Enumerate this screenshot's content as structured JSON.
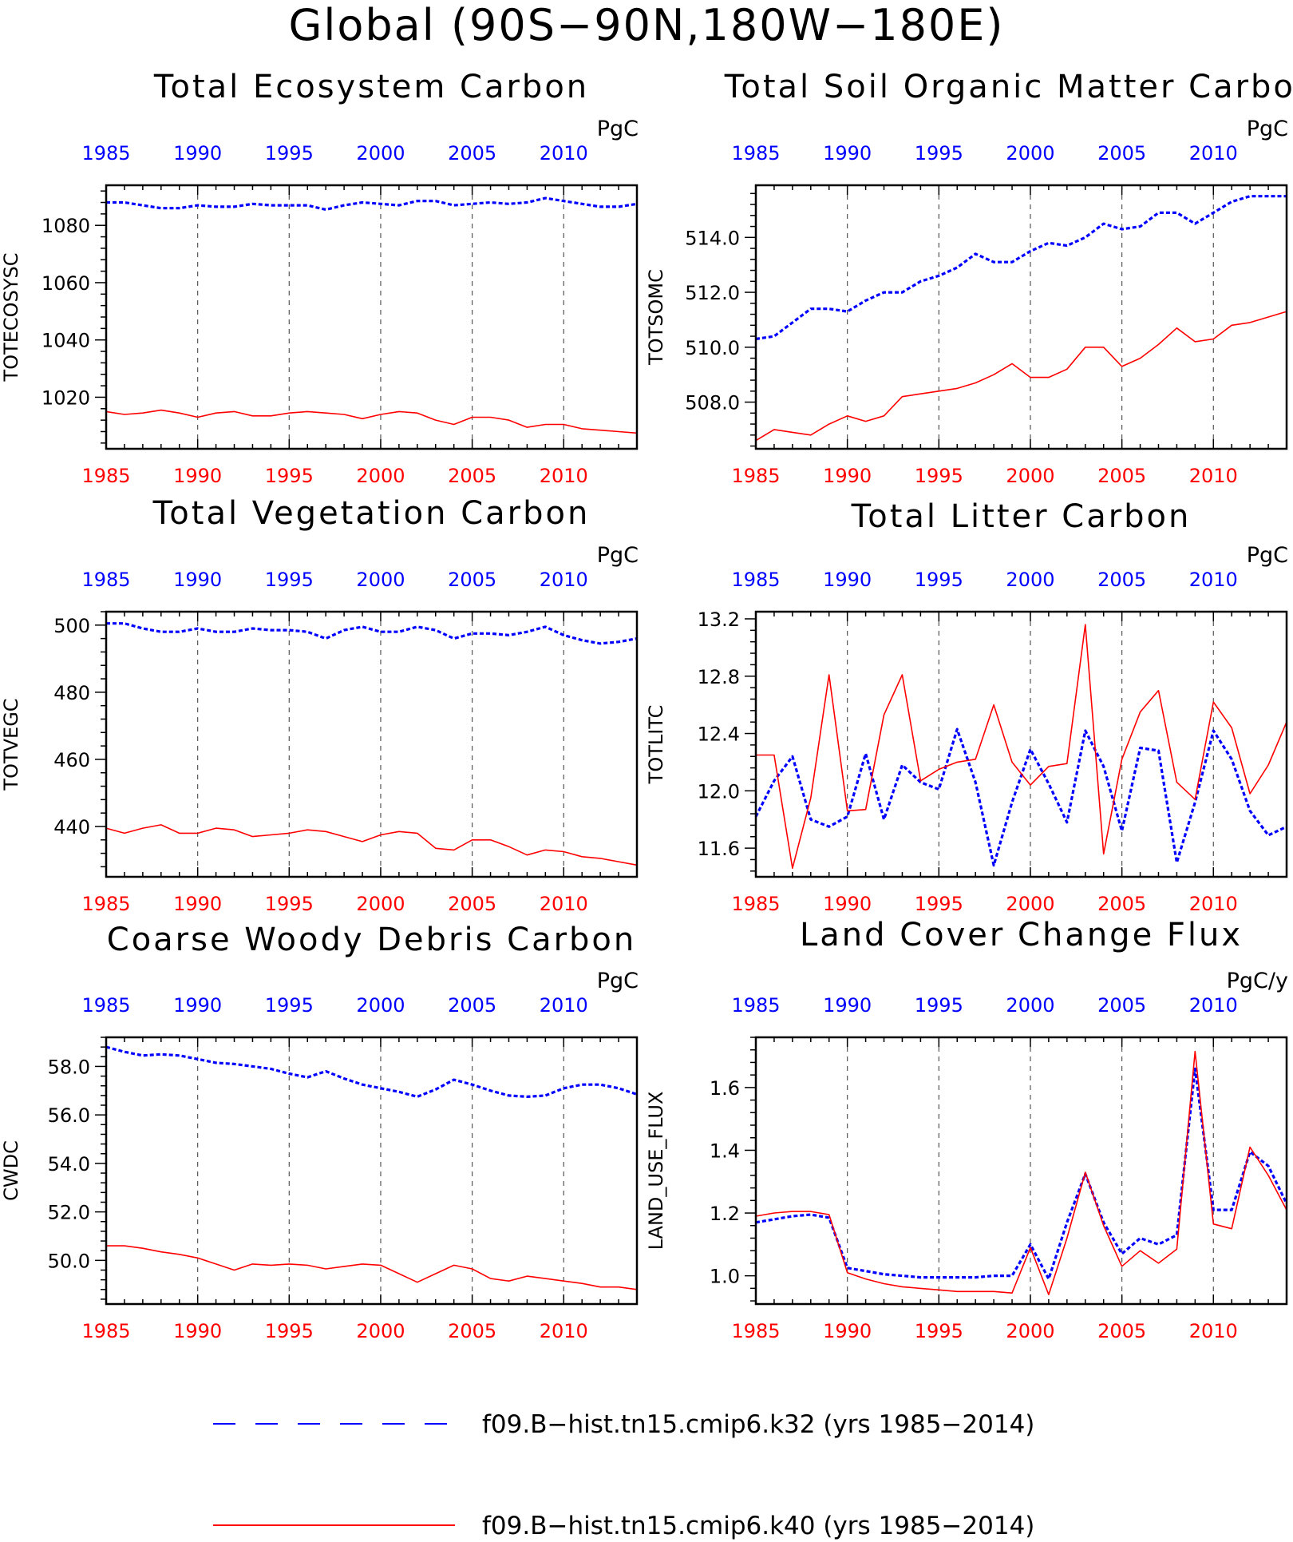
{
  "page_title": "Global (90S−90N,180W−180E)",
  "colors": {
    "series_a": "#0000ff",
    "series_b": "#ff0000",
    "axis": "#000000"
  },
  "legend": [
    {
      "label": "f09.B−hist.tn15.cmip6.k32 (yrs 1985−2014)",
      "color": "#0000ff",
      "style": "dashed"
    },
    {
      "label": "f09.B−hist.tn15.cmip6.k40 (yrs 1985−2014)",
      "color": "#ff0000",
      "style": "solid"
    }
  ],
  "chart_data": [
    {
      "type": "line",
      "title": "Total Ecosystem Carbon",
      "ylabel": "TOTECOSYSC",
      "units": "PgC",
      "xlim": [
        1985,
        2014
      ],
      "ylim": [
        1002,
        1094
      ],
      "yticks": [
        1020,
        1040,
        1060,
        1080
      ],
      "ytick_labels": [
        "1020",
        "1040",
        "1060",
        "1080"
      ],
      "xticks": [
        1985,
        1990,
        1995,
        2000,
        2005,
        2010
      ],
      "ygrid": [
        1990,
        1995,
        2000,
        2005,
        2010
      ],
      "x": [
        1985,
        1986,
        1987,
        1988,
        1989,
        1990,
        1991,
        1992,
        1993,
        1994,
        1995,
        1996,
        1997,
        1998,
        1999,
        2000,
        2001,
        2002,
        2003,
        2004,
        2005,
        2006,
        2007,
        2008,
        2009,
        2010,
        2011,
        2012,
        2013,
        2014
      ],
      "series": [
        {
          "name": "f09.B−hist.tn15.cmip6.k32",
          "style": "dashed",
          "values": [
            1088,
            1088,
            1087,
            1086,
            1086,
            1087,
            1086.5,
            1086.5,
            1087.5,
            1087,
            1087,
            1087,
            1085.5,
            1087,
            1088,
            1087.5,
            1087,
            1088.5,
            1088.5,
            1087,
            1087.5,
            1088,
            1087.5,
            1088,
            1089.5,
            1088.5,
            1087.5,
            1086.5,
            1086.5,
            1087.5
          ]
        },
        {
          "name": "f09.B−hist.tn15.cmip6.k40",
          "style": "solid",
          "values": [
            1015,
            1014,
            1014.5,
            1015.5,
            1014.5,
            1013,
            1014.5,
            1015,
            1013.5,
            1013.5,
            1014.5,
            1015,
            1014.5,
            1014,
            1012.5,
            1014,
            1015,
            1014.5,
            1012,
            1010.5,
            1013,
            1013,
            1012,
            1009.5,
            1010.5,
            1010.5,
            1009,
            1008.5,
            1008,
            1007.5
          ]
        }
      ]
    },
    {
      "type": "line",
      "title": "Total Soil Organic Matter Carbon",
      "ylabel": "TOTSOMC",
      "units": "PgC",
      "xlim": [
        1985,
        2014
      ],
      "ylim": [
        506.3,
        515.9
      ],
      "yticks": [
        508,
        510,
        512,
        514
      ],
      "ytick_labels": [
        "508.0",
        "510.0",
        "512.0",
        "514.0"
      ],
      "xticks": [
        1985,
        1990,
        1995,
        2000,
        2005,
        2010
      ],
      "ygrid": [
        1990,
        1995,
        2000,
        2005,
        2010
      ],
      "x": [
        1985,
        1986,
        1987,
        1988,
        1989,
        1990,
        1991,
        1992,
        1993,
        1994,
        1995,
        1996,
        1997,
        1998,
        1999,
        2000,
        2001,
        2002,
        2003,
        2004,
        2005,
        2006,
        2007,
        2008,
        2009,
        2010,
        2011,
        2012,
        2013,
        2014
      ],
      "series": [
        {
          "name": "f09.B−hist.tn15.cmip6.k32",
          "style": "dashed",
          "values": [
            510.3,
            510.4,
            510.9,
            511.4,
            511.4,
            511.3,
            511.7,
            512,
            512,
            512.4,
            512.6,
            512.9,
            513.4,
            513.1,
            513.1,
            513.5,
            513.8,
            513.7,
            514,
            514.5,
            514.3,
            514.4,
            514.9,
            514.9,
            514.5,
            514.9,
            515.3,
            515.5,
            515.5,
            515.5
          ]
        },
        {
          "name": "f09.B−hist.tn15.cmip6.k40",
          "style": "solid",
          "values": [
            506.6,
            507,
            506.9,
            506.8,
            507.2,
            507.5,
            507.3,
            507.5,
            508.2,
            508.3,
            508.4,
            508.5,
            508.7,
            509,
            509.4,
            508.9,
            508.9,
            509.2,
            510,
            510,
            509.3,
            509.6,
            510.1,
            510.7,
            510.2,
            510.3,
            510.8,
            510.9,
            511.1,
            511.3
          ]
        }
      ]
    },
    {
      "type": "line",
      "title": "Total Vegetation Carbon",
      "ylabel": "TOTVEGC",
      "units": "PgC",
      "xlim": [
        1985,
        2014
      ],
      "ylim": [
        425,
        504
      ],
      "yticks": [
        440,
        460,
        480,
        500
      ],
      "ytick_labels": [
        "440",
        "460",
        "480",
        "500"
      ],
      "xticks": [
        1985,
        1990,
        1995,
        2000,
        2005,
        2010
      ],
      "ygrid": [
        1990,
        1995,
        2000,
        2005,
        2010
      ],
      "x": [
        1985,
        1986,
        1987,
        1988,
        1989,
        1990,
        1991,
        1992,
        1993,
        1994,
        1995,
        1996,
        1997,
        1998,
        1999,
        2000,
        2001,
        2002,
        2003,
        2004,
        2005,
        2006,
        2007,
        2008,
        2009,
        2010,
        2011,
        2012,
        2013,
        2014
      ],
      "series": [
        {
          "name": "f09.B−hist.tn15.cmip6.k32",
          "style": "dashed",
          "values": [
            500.5,
            500.5,
            499,
            498,
            498,
            499,
            498,
            498,
            499,
            498.5,
            498.5,
            498,
            496,
            498.5,
            499.5,
            498,
            498,
            499.5,
            498.5,
            496,
            497.5,
            497.5,
            497,
            498,
            499.5,
            497,
            495.5,
            494.5,
            495,
            496
          ]
        },
        {
          "name": "f09.B−hist.tn15.cmip6.k40",
          "style": "solid",
          "values": [
            439.5,
            438,
            439.5,
            440.5,
            438,
            438,
            439.5,
            439,
            437,
            437.5,
            438,
            439,
            438.5,
            437,
            435.5,
            437.5,
            438.5,
            438,
            433.5,
            433,
            436,
            436,
            434,
            431.5,
            433,
            432.5,
            431,
            430.5,
            429.5,
            428.5
          ]
        }
      ]
    },
    {
      "type": "line",
      "title": "Total Litter Carbon",
      "ylabel": "TOTLITC",
      "units": "PgC",
      "xlim": [
        1985,
        2014
      ],
      "ylim": [
        11.4,
        13.25
      ],
      "yticks": [
        11.6,
        12.0,
        12.4,
        12.8,
        13.2
      ],
      "ytick_labels": [
        "11.6",
        "12.0",
        "12.4",
        "12.8",
        "13.2"
      ],
      "xticks": [
        1985,
        1990,
        1995,
        2000,
        2005,
        2010
      ],
      "ygrid": [
        1990,
        1995,
        2000,
        2005,
        2010
      ],
      "x": [
        1985,
        1986,
        1987,
        1988,
        1989,
        1990,
        1991,
        1992,
        1993,
        1994,
        1995,
        1996,
        1997,
        1998,
        1999,
        2000,
        2001,
        2002,
        2003,
        2004,
        2005,
        2006,
        2007,
        2008,
        2009,
        2010,
        2011,
        2012,
        2013,
        2014
      ],
      "series": [
        {
          "name": "f09.B−hist.tn15.cmip6.k32",
          "style": "dashed",
          "values": [
            11.82,
            12.07,
            12.24,
            11.8,
            11.75,
            11.82,
            12.26,
            11.8,
            12.18,
            12.06,
            12.01,
            12.43,
            12.06,
            11.48,
            11.92,
            12.29,
            12.05,
            11.78,
            12.42,
            12.17,
            11.72,
            12.3,
            12.28,
            11.5,
            11.92,
            12.42,
            12.22,
            11.86,
            11.69,
            11.75
          ]
        },
        {
          "name": "f09.B−hist.tn15.cmip6.k40",
          "style": "solid",
          "values": [
            12.25,
            12.25,
            11.46,
            11.95,
            12.81,
            11.86,
            11.87,
            12.53,
            12.81,
            12.07,
            12.15,
            12.2,
            12.22,
            12.6,
            12.2,
            12.04,
            12.17,
            12.19,
            13.16,
            11.56,
            12.22,
            12.55,
            12.7,
            12.06,
            11.94,
            12.62,
            12.44,
            11.98,
            12.18,
            12.48
          ]
        }
      ]
    },
    {
      "type": "line",
      "title": "Coarse Woody Debris Carbon",
      "ylabel": "CWDC",
      "units": "PgC",
      "xlim": [
        1985,
        2014
      ],
      "ylim": [
        48.2,
        59.2
      ],
      "yticks": [
        50,
        52,
        54,
        56,
        58
      ],
      "ytick_labels": [
        "50.0",
        "52.0",
        "54.0",
        "56.0",
        "58.0"
      ],
      "xticks": [
        1985,
        1990,
        1995,
        2000,
        2005,
        2010
      ],
      "ygrid": [
        1990,
        1995,
        2000,
        2005,
        2010
      ],
      "x": [
        1985,
        1986,
        1987,
        1988,
        1989,
        1990,
        1991,
        1992,
        1993,
        1994,
        1995,
        1996,
        1997,
        1998,
        1999,
        2000,
        2001,
        2002,
        2003,
        2004,
        2005,
        2006,
        2007,
        2008,
        2009,
        2010,
        2011,
        2012,
        2013,
        2014
      ],
      "series": [
        {
          "name": "f09.B−hist.tn15.cmip6.k32",
          "style": "dashed",
          "values": [
            58.8,
            58.6,
            58.45,
            58.5,
            58.45,
            58.3,
            58.15,
            58.1,
            58,
            57.9,
            57.7,
            57.55,
            57.8,
            57.5,
            57.25,
            57.1,
            56.95,
            56.75,
            57.05,
            57.45,
            57.25,
            57,
            56.8,
            56.75,
            56.8,
            57.1,
            57.25,
            57.25,
            57.1,
            56.85
          ]
        },
        {
          "name": "f09.B−hist.tn15.cmip6.k40",
          "style": "solid",
          "values": [
            50.6,
            50.6,
            50.5,
            50.35,
            50.25,
            50.1,
            49.85,
            49.6,
            49.85,
            49.8,
            49.85,
            49.8,
            49.65,
            49.75,
            49.85,
            49.8,
            49.45,
            49.1,
            49.45,
            49.8,
            49.65,
            49.25,
            49.15,
            49.35,
            49.25,
            49.15,
            49.05,
            48.9,
            48.9,
            48.8
          ]
        }
      ]
    },
    {
      "type": "line",
      "title": "Land Cover Change Flux",
      "ylabel": "LAND_USE_FLUX",
      "units": "PgC/y",
      "xlim": [
        1985,
        2014
      ],
      "ylim": [
        0.91,
        1.76
      ],
      "yticks": [
        1.0,
        1.2,
        1.4,
        1.6
      ],
      "ytick_labels": [
        "1.0",
        "1.2",
        "1.4",
        "1.6"
      ],
      "xticks": [
        1985,
        1990,
        1995,
        2000,
        2005,
        2010
      ],
      "ygrid": [
        1990,
        1995,
        2000,
        2005,
        2010
      ],
      "x": [
        1985,
        1986,
        1987,
        1988,
        1989,
        1990,
        1991,
        1992,
        1993,
        1994,
        1995,
        1996,
        1997,
        1998,
        1999,
        2000,
        2001,
        2002,
        2003,
        2004,
        2005,
        2006,
        2007,
        2008,
        2009,
        2010,
        2011,
        2012,
        2013,
        2014
      ],
      "series": [
        {
          "name": "f09.B−hist.tn15.cmip6.k32",
          "style": "dashed",
          "values": [
            1.17,
            1.18,
            1.19,
            1.195,
            1.185,
            1.025,
            1.015,
            1.005,
            1.0,
            0.995,
            0.995,
            0.995,
            0.995,
            1.0,
            1.0,
            1.1,
            0.99,
            1.17,
            1.325,
            1.17,
            1.07,
            1.12,
            1.1,
            1.13,
            1.66,
            1.21,
            1.21,
            1.395,
            1.35,
            1.23
          ]
        },
        {
          "name": "f09.B−hist.tn15.cmip6.k40",
          "style": "solid",
          "values": [
            1.19,
            1.2,
            1.205,
            1.205,
            1.195,
            1.01,
            0.99,
            0.975,
            0.965,
            0.96,
            0.955,
            0.95,
            0.95,
            0.95,
            0.945,
            1.09,
            0.94,
            1.12,
            1.33,
            1.16,
            1.03,
            1.08,
            1.04,
            1.085,
            1.715,
            1.165,
            1.15,
            1.41,
            1.32,
            1.21
          ]
        }
      ]
    }
  ]
}
